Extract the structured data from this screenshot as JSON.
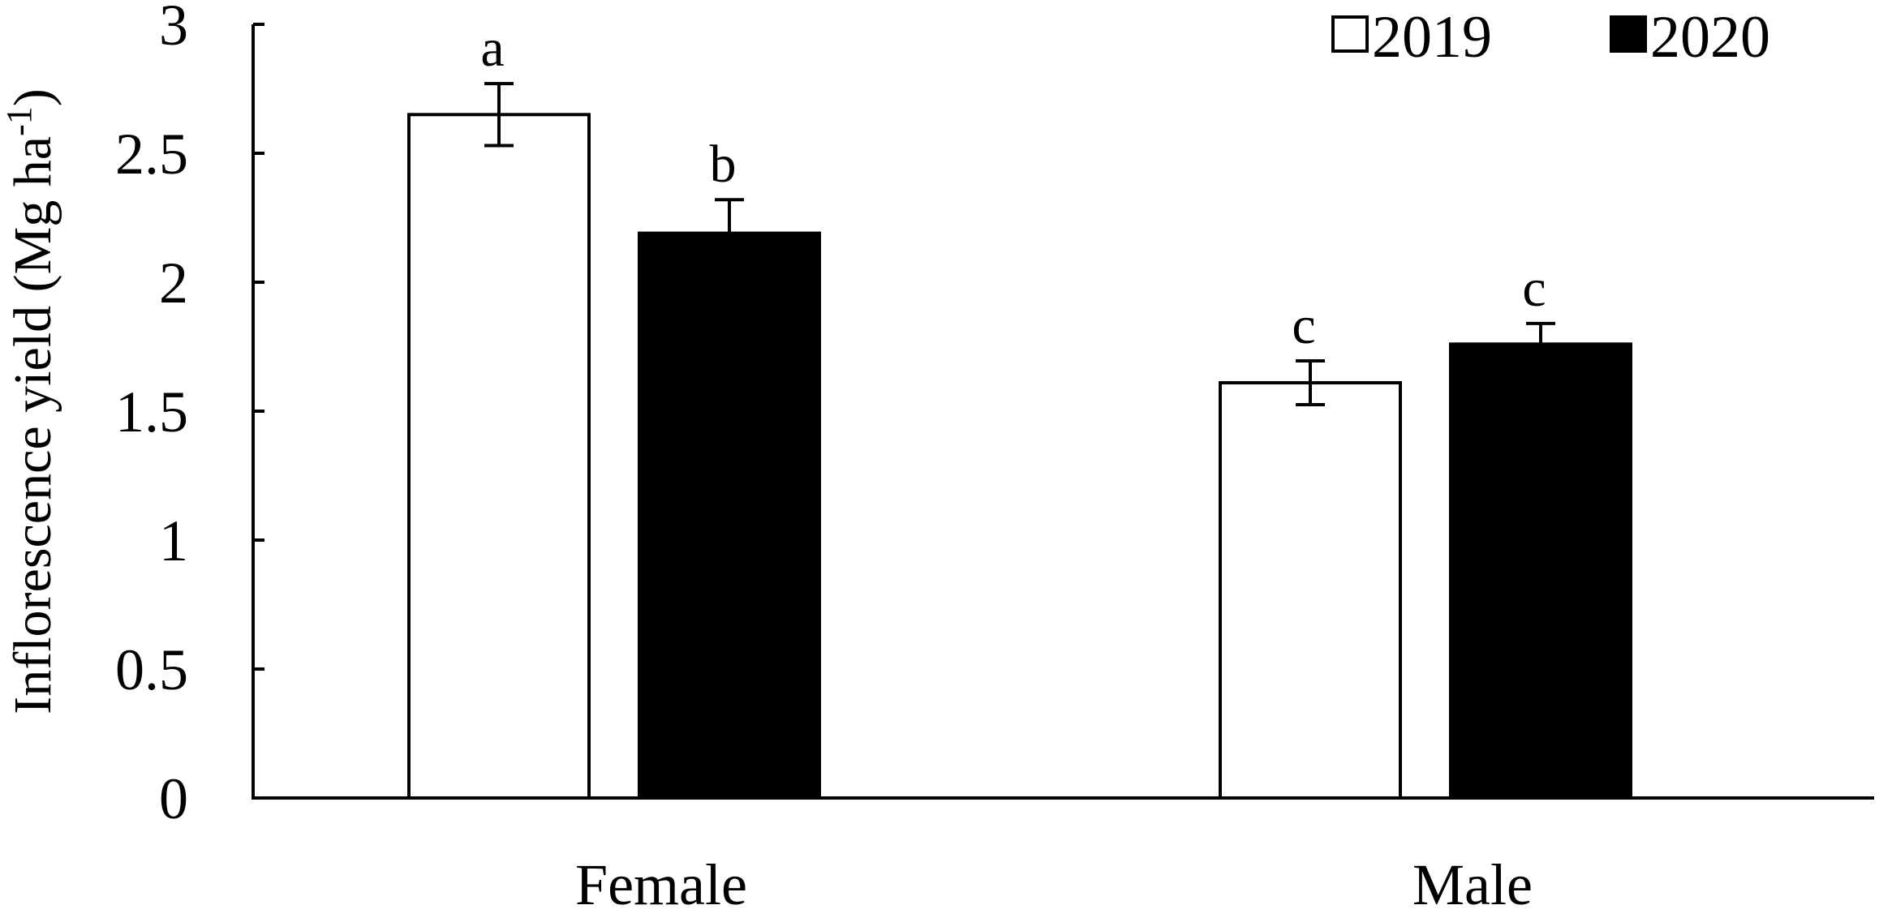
{
  "chart_data": {
    "type": "bar",
    "categories": [
      "Female",
      "Male"
    ],
    "series": [
      {
        "name": "2019",
        "color": "#ffffff",
        "values": [
          2.65,
          1.61
        ],
        "errors": [
          0.12,
          0.085
        ],
        "labels": [
          "a",
          "c"
        ]
      },
      {
        "name": "2020",
        "color": "#000000",
        "values": [
          2.19,
          1.76
        ],
        "errors": [
          0.13,
          0.08
        ],
        "labels": [
          "b",
          "c"
        ]
      }
    ],
    "title": "",
    "xlabel": "",
    "ylabel": "Inflorescence yield (Mg ha",
    "ylabel_superscript": "-1",
    "ylabel_suffix": ")",
    "ylim": [
      0,
      3
    ],
    "yticks": [
      0,
      0.5,
      1,
      1.5,
      2,
      2.5,
      3
    ],
    "ytick_labels": [
      "0",
      "0.5",
      "1",
      "1.5",
      "2",
      "2.5",
      "3"
    ],
    "grid": false,
    "legend_position": "top-right"
  }
}
